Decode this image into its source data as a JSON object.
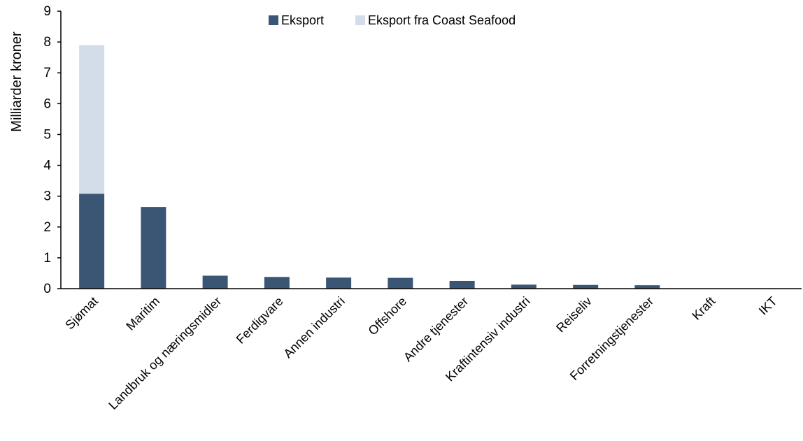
{
  "chart_data": {
    "type": "bar",
    "stacked": true,
    "categories": [
      "Sjømat",
      "Maritim",
      "Landbruk og næringsmidler",
      "Ferdigvare",
      "Annen industri",
      "Offshore",
      "Andre tjenester",
      "Kraftintensiv industri",
      "Reiseliv",
      "Forretningstjenester",
      "Kraft",
      "IKT"
    ],
    "series": [
      {
        "name": "Eksport",
        "color": "#3b5675",
        "values": [
          3.08,
          2.65,
          0.42,
          0.38,
          0.36,
          0.35,
          0.25,
          0.13,
          0.12,
          0.11,
          0.0,
          0.0
        ]
      },
      {
        "name": "Eksport fra Coast Seafood",
        "color": "#d3dde9",
        "values": [
          4.82,
          0,
          0,
          0,
          0,
          0,
          0,
          0,
          0,
          0,
          0,
          0
        ]
      }
    ],
    "title": "",
    "xlabel": "",
    "ylabel": "Milliarder kroner",
    "ylim": [
      0,
      9
    ],
    "yticks": [
      0,
      1,
      2,
      3,
      4,
      5,
      6,
      7,
      8,
      9
    ],
    "grid": false,
    "legend_position": "top-center"
  }
}
